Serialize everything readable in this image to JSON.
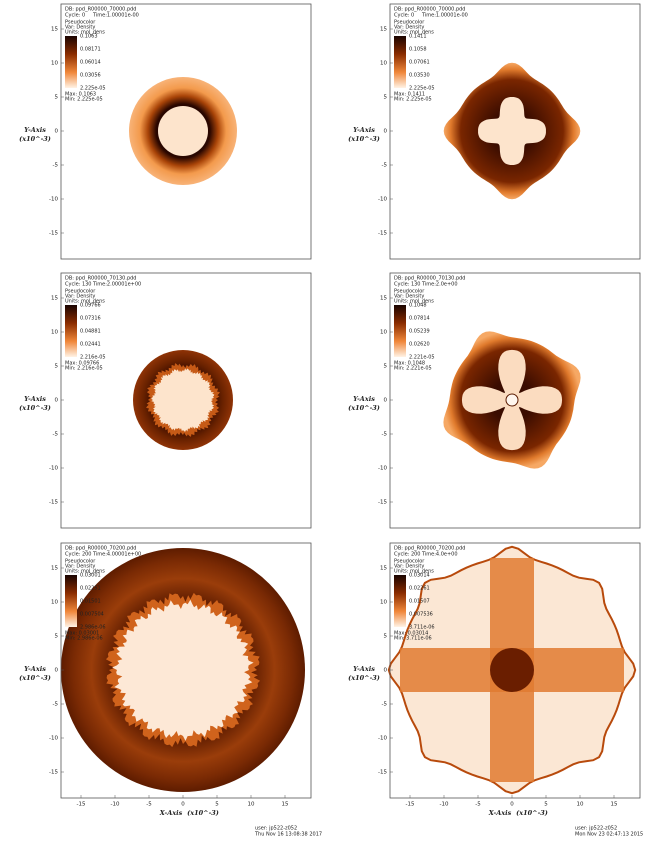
{
  "axis": {
    "y_label": "Y-Axis",
    "x_label": "X-Axis",
    "scale": "(x10^-3)",
    "yticks": [
      "15",
      "10",
      "5",
      "0",
      "-5",
      "-10",
      "-15"
    ],
    "xticks": [
      "-15",
      "-10",
      "-5",
      "0",
      "5",
      "10",
      "15"
    ]
  },
  "panels": [
    {
      "db": "DB: ppd_R00000_70000.pdd",
      "cycle": "Cycle: 0",
      "time": "Time:1.00001e-00",
      "plot": "Pseudocolor",
      "var": "Var: Density",
      "units": "Units: mol_dens",
      "legend": [
        "0.1063",
        "0.08171",
        "0.06014",
        "0.03056",
        "2.225e-05"
      ],
      "max": "Max: 0.1063",
      "min": "Min: 2.225e-05"
    },
    {
      "db": "DB: ppd_R00000_70000.pdd",
      "cycle": "Cycle: 0",
      "time": "Time:1.00001e-00",
      "plot": "Pseudocolor",
      "var": "Var: Density",
      "units": "Units: mol_dens",
      "legend": [
        "0.1411",
        "0.1058",
        "0.07061",
        "0.03530",
        "2.225e-05"
      ],
      "max": "Max: 0.1411",
      "min": "Min: 2.225e-05"
    },
    {
      "db": "DB: ppd_R00000_70130.pdd",
      "cycle": "Cycle: 130",
      "time": "Time:2.00001e+00",
      "plot": "Pseudocolor",
      "var": "Var: Density",
      "units": "Units: mol_dens",
      "legend": [
        "0.09766",
        "0.07316",
        "0.04881",
        "0.02441",
        "2.216e-05"
      ],
      "max": "Max: 0.09766",
      "min": "Min: 2.216e-05"
    },
    {
      "db": "DB: ppd_R00000_70130.pdd",
      "cycle": "Cycle: 130",
      "time": "Time:2.0e+00",
      "plot": "Pseudocolor",
      "var": "Var: Density",
      "units": "Units: mol_dens",
      "legend": [
        "0.1048",
        "0.07814",
        "0.05239",
        "0.02620",
        "2.221e-05"
      ],
      "max": "Max: 0.1048",
      "min": "Min: 2.221e-05"
    },
    {
      "db": "DB: ppd_R00000_70200.pdd",
      "cycle": "Cycle: 200",
      "time": "Time:4.00001e+00",
      "plot": "Pseudocolor",
      "var": "Var: Density",
      "units": "Units: mol_dens",
      "legend": [
        "0.03001",
        "0.02251",
        "0.01501",
        "0.007504",
        "2.986e-06"
      ],
      "max": "Max: 0.03001",
      "min": "Min: 2.986e-06"
    },
    {
      "db": "DB: ppd_R00000_70200.pdd",
      "cycle": "Cycle: 200",
      "time": "Time:4.0e+00",
      "plot": "Pseudocolor",
      "var": "Var: Density",
      "units": "Units: mol_dens",
      "legend": [
        "0.03014",
        "0.02261",
        "0.01507",
        "0.007536",
        "3.711e-06"
      ],
      "max": "Max: 0.03014",
      "min": "Min: 3.711e-06"
    }
  ],
  "footer": [
    {
      "user": "user: jp522-z052",
      "date": "Thu Nov 16 13:08:38 2017"
    },
    {
      "user": "user: jp522-z052",
      "date": "Mon Nov 23 02:47:13 2015"
    }
  ]
}
